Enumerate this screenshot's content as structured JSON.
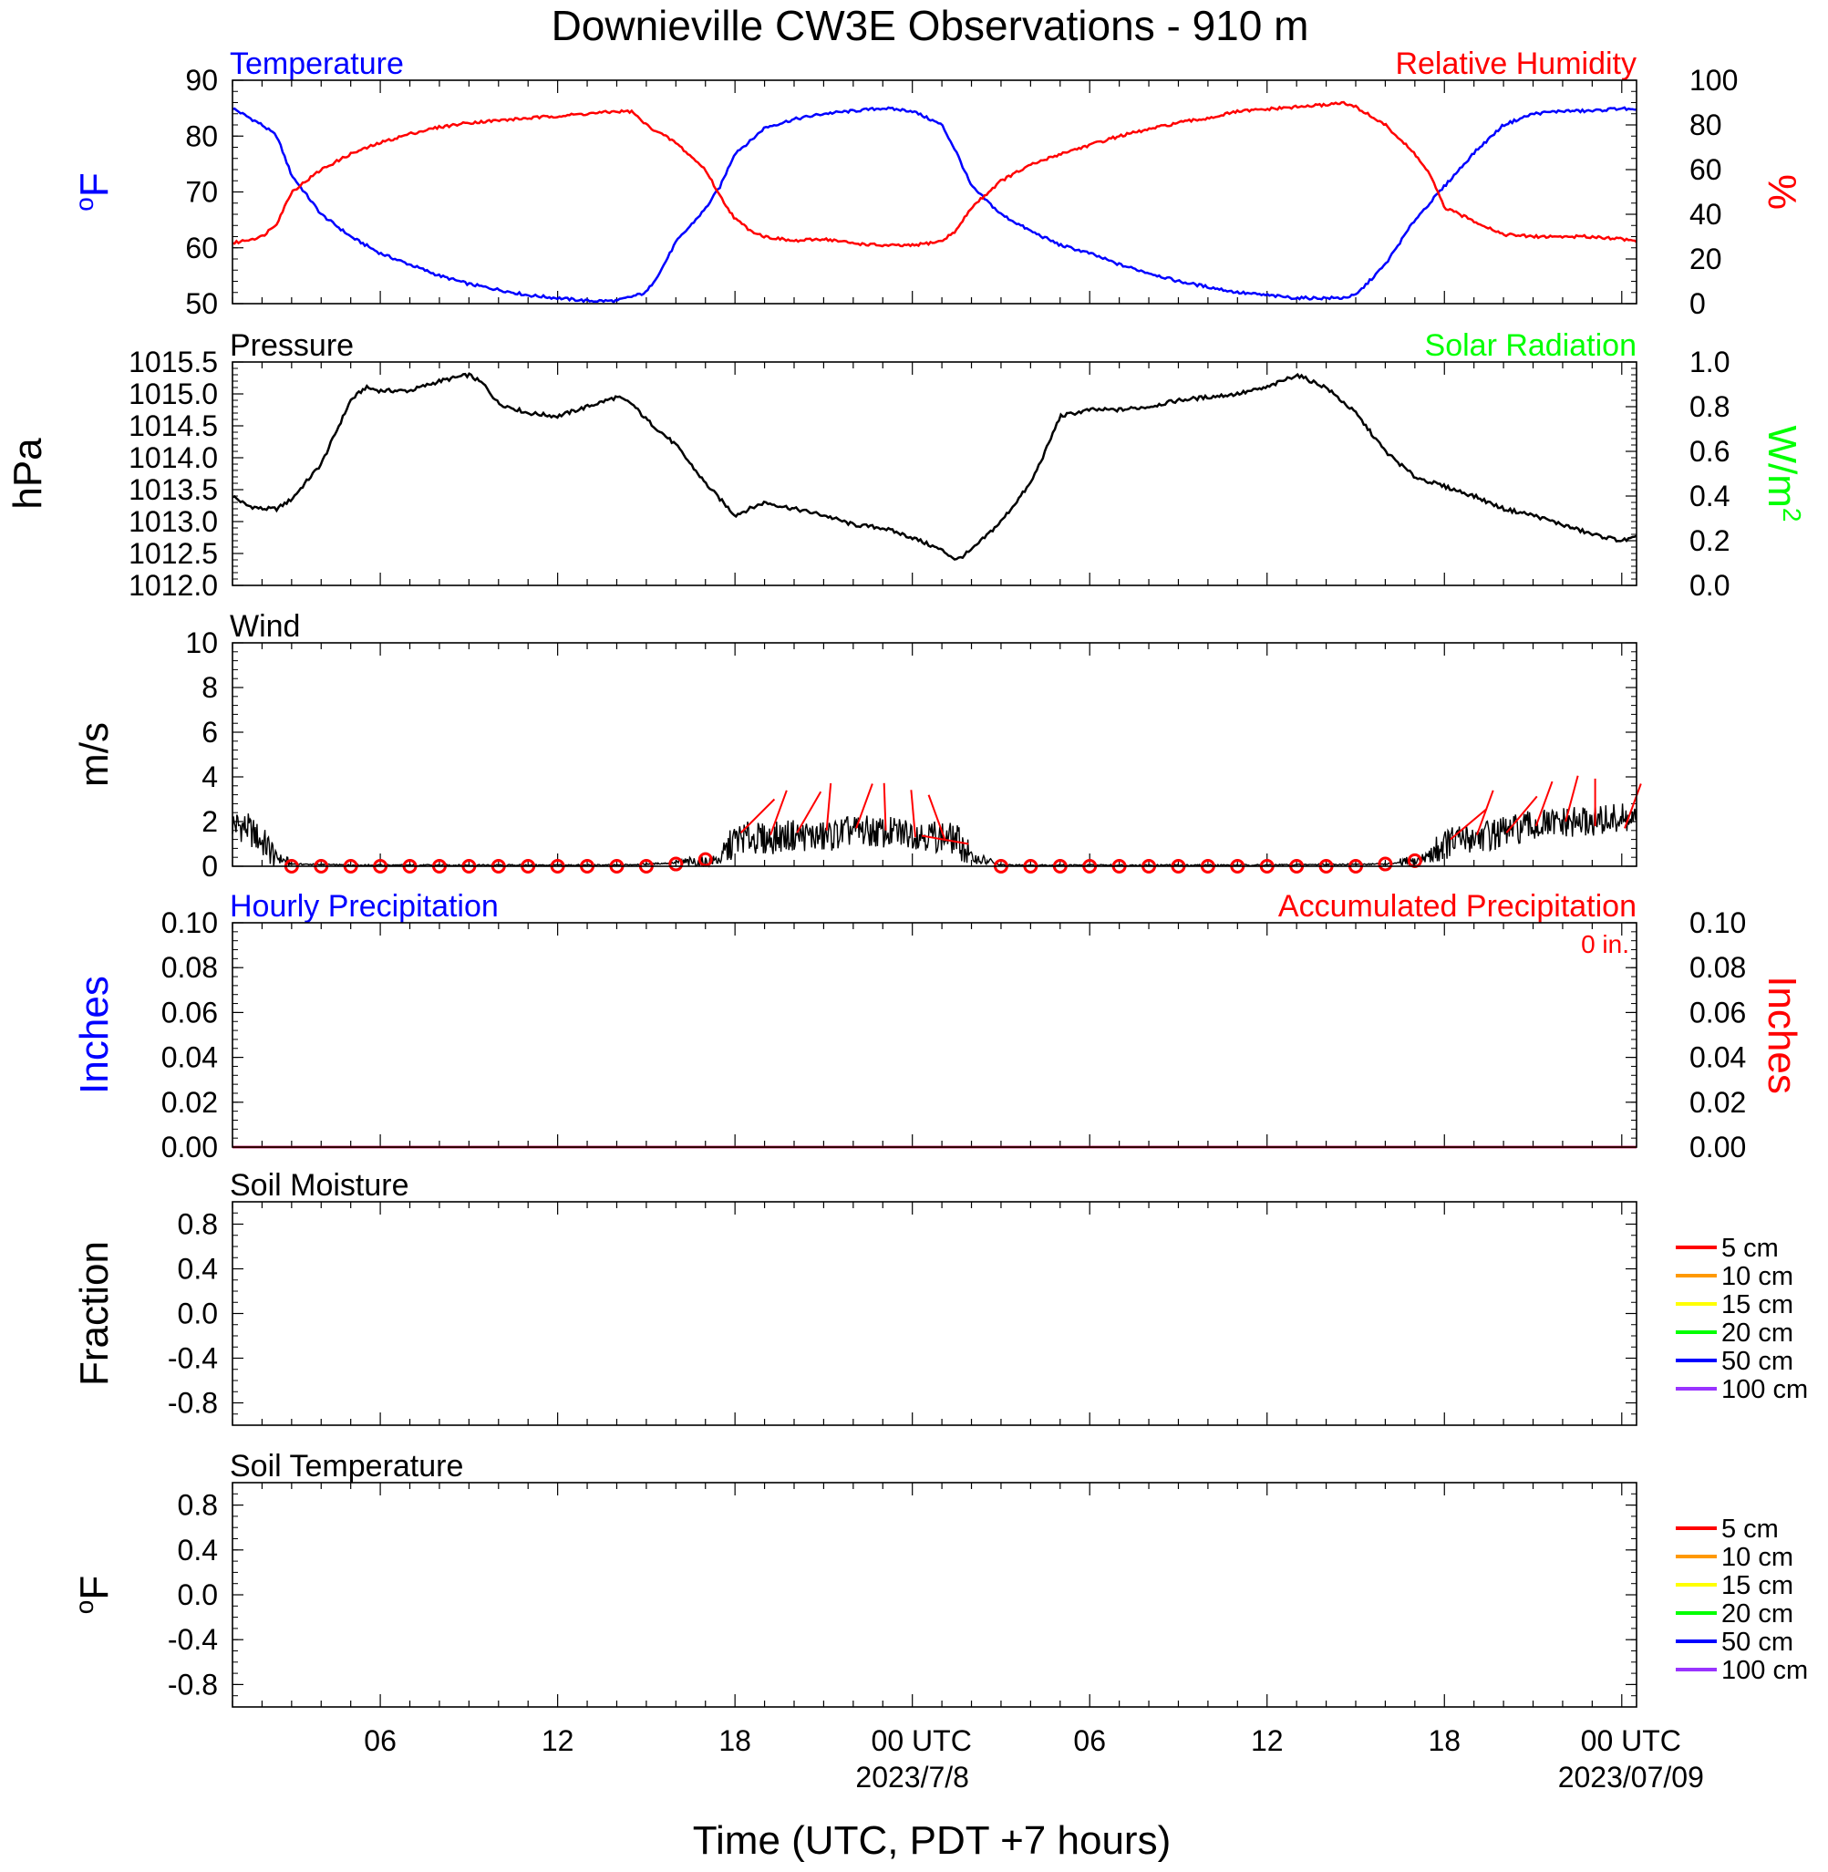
{
  "title": "Downieville CW3E Observations - 910 m",
  "xlabel": "Time (UTC, PDT +7 hours)",
  "xticks": [
    "06",
    "12",
    "18",
    "00 UTC",
    "06",
    "12",
    "18",
    "00 UTC"
  ],
  "xdates": [
    "2023/7/8",
    "2023/07/09"
  ],
  "colors": {
    "blue": "#0000ff",
    "red": "#ff0000",
    "green": "#00ff00",
    "black": "#000000"
  },
  "chart_data": [
    {
      "type": "line",
      "title_left": "Temperature",
      "title_right": "Relative Humidity",
      "ylabel_left_sup": "o",
      "ylabel_left": "F",
      "ylabel_right": "%",
      "ylim_left": [
        50,
        90
      ],
      "yticks_left": [
        "50",
        "60",
        "70",
        "80",
        "90"
      ],
      "ylim_right": [
        0,
        100
      ],
      "yticks_right": [
        "0",
        "20",
        "40",
        "60",
        "80",
        "100"
      ],
      "series": [
        {
          "name": "Temperature",
          "axis": "left",
          "x": [
            1,
            2,
            2.5,
            3,
            4,
            5,
            6,
            7,
            8,
            9,
            10,
            11,
            12,
            13,
            13.5,
            14,
            15,
            15.5,
            16,
            17,
            17.5,
            18,
            18.5,
            19,
            20,
            21,
            22,
            23,
            24,
            25,
            25.5,
            26,
            27,
            28,
            29,
            30,
            31,
            32,
            33,
            34,
            35,
            36,
            37,
            38,
            38.5,
            39,
            40,
            41,
            41.5,
            42,
            43,
            44,
            45,
            46,
            47,
            48,
            48.5
          ],
          "y": [
            85,
            82,
            80,
            73,
            66,
            62,
            59,
            57,
            55,
            53.5,
            52.5,
            51.5,
            51,
            50.5,
            50.5,
            50.5,
            52,
            56,
            61,
            67,
            71,
            77,
            79,
            81.5,
            83,
            84,
            84.5,
            85,
            84.5,
            82,
            77,
            71,
            66,
            63,
            60.5,
            59,
            57,
            55.5,
            54,
            53,
            52,
            51.5,
            51,
            51,
            51,
            51.5,
            57,
            65,
            68,
            71,
            77,
            82,
            84,
            84.5,
            84.5,
            85,
            84.5
          ]
        },
        {
          "name": "Relative Humidity",
          "axis": "right",
          "x": [
            1,
            2,
            2.5,
            3,
            4,
            5,
            6,
            7,
            8,
            9,
            10,
            11,
            12,
            13,
            14,
            14.5,
            15,
            16,
            17,
            17.5,
            18,
            18.5,
            19,
            20,
            21,
            22,
            23,
            24,
            25,
            25.5,
            26,
            27,
            28,
            29,
            30,
            31,
            32,
            33,
            34,
            35,
            36,
            37,
            38,
            38.5,
            39,
            40,
            41,
            41.5,
            42,
            43,
            44,
            45,
            46,
            47,
            48,
            48.5
          ],
          "y": [
            27,
            30,
            36,
            50,
            60,
            67,
            72,
            76,
            79,
            81,
            82,
            83,
            84,
            85,
            86,
            86,
            80,
            72,
            60,
            48,
            38,
            33,
            30,
            28,
            29,
            27,
            26,
            26,
            28,
            33,
            43,
            55,
            62,
            67,
            71,
            75,
            78,
            81,
            83,
            86,
            87,
            88,
            89,
            90,
            88,
            80,
            67,
            58,
            43,
            37,
            31,
            30,
            30,
            30,
            29,
            28
          ]
        }
      ]
    },
    {
      "type": "line",
      "title_left": "Pressure",
      "title_right": "Solar Radiation",
      "ylabel_left": "hPa",
      "ylabel_right": "W/m",
      "ylabel_right_sup": "2",
      "ylim_left": [
        1012.0,
        1015.5
      ],
      "yticks_left": [
        "1012.0",
        "1012.5",
        "1013.0",
        "1013.5",
        "1014.0",
        "1014.5",
        "1015.0",
        "1015.5"
      ],
      "ylim_right": [
        0,
        1
      ],
      "yticks_right": [
        "0.0",
        "0.2",
        "0.4",
        "0.6",
        "0.8",
        "1.0"
      ],
      "series": [
        {
          "name": "Pressure",
          "axis": "left",
          "x": [
            1,
            1.5,
            2,
            2.5,
            3,
            4,
            4.5,
            5,
            5.5,
            6,
            7,
            8,
            9,
            9.5,
            10,
            11,
            12,
            13,
            14,
            14.5,
            15,
            16,
            17,
            18,
            18.5,
            19,
            20,
            21,
            22,
            23,
            24,
            25,
            25.5,
            26,
            27,
            28,
            28.5,
            29,
            30,
            31,
            32,
            33,
            34,
            35,
            36,
            36.5,
            37,
            38,
            39,
            40,
            41,
            42,
            43,
            44,
            45,
            46,
            47,
            48,
            48.5
          ],
          "y": [
            1013.4,
            1013.25,
            1013.2,
            1013.2,
            1013.35,
            1013.9,
            1014.4,
            1014.9,
            1015.1,
            1015.05,
            1015.05,
            1015.2,
            1015.3,
            1015.15,
            1014.85,
            1014.7,
            1014.65,
            1014.8,
            1014.95,
            1014.85,
            1014.6,
            1014.2,
            1013.6,
            1013.1,
            1013.2,
            1013.3,
            1013.2,
            1013.1,
            1012.95,
            1012.9,
            1012.75,
            1012.55,
            1012.4,
            1012.55,
            1013.0,
            1013.6,
            1014.1,
            1014.65,
            1014.75,
            1014.75,
            1014.8,
            1014.9,
            1014.95,
            1015.0,
            1015.1,
            1015.2,
            1015.3,
            1015.1,
            1014.7,
            1014.1,
            1013.7,
            1013.55,
            1013.4,
            1013.2,
            1013.1,
            1012.95,
            1012.8,
            1012.7,
            1012.75
          ]
        }
      ]
    },
    {
      "type": "line",
      "title_left": "Wind",
      "ylabel_left": "m/s",
      "ylim_left": [
        0,
        10
      ],
      "yticks_left": [
        "0",
        "2",
        "4",
        "6",
        "8",
        "10"
      ],
      "series": [
        {
          "name": "Wind",
          "axis": "left",
          "x": [
            1,
            1.5,
            2,
            2.5,
            3,
            5,
            10,
            14,
            15,
            16,
            17,
            17.5,
            18,
            18.5,
            19,
            20,
            21,
            22,
            23,
            24,
            25,
            25.5,
            26,
            27,
            30,
            35,
            40,
            41,
            41.5,
            42,
            43,
            44,
            45,
            46,
            47,
            48,
            48.5
          ],
          "y": [
            1.9,
            1.7,
            1.1,
            0.4,
            0.1,
            0.05,
            0.05,
            0.05,
            0.1,
            0.15,
            0.2,
            0.3,
            1.2,
            1.3,
            1.2,
            1.4,
            1.3,
            1.6,
            1.5,
            1.5,
            1.3,
            1.2,
            0.4,
            0.05,
            0.05,
            0.05,
            0.1,
            0.2,
            0.5,
            1.0,
            1.3,
            1.5,
            1.8,
            1.9,
            2.0,
            2.1,
            2.0
          ]
        }
      ],
      "calm_markers_x": [
        3,
        4,
        5,
        6,
        7,
        8,
        9,
        10,
        11,
        12,
        13,
        14,
        15,
        16,
        17,
        27,
        28,
        29,
        30,
        31,
        32,
        33,
        34,
        35,
        36,
        37,
        38,
        39,
        40,
        41
      ],
      "calm_markers_y": [
        0,
        0,
        0,
        0,
        0,
        0,
        0,
        0,
        0,
        0,
        0,
        0,
        0,
        0.1,
        0.3,
        0,
        0,
        0,
        0,
        0,
        0,
        0,
        0,
        0,
        0,
        0,
        0,
        0,
        0.1,
        0.25
      ],
      "barbs": [
        {
          "x": 18.2,
          "speed": 1.5,
          "dir": 315
        },
        {
          "x": 19.2,
          "speed": 1.4,
          "dir": 340
        },
        {
          "x": 20.1,
          "speed": 1.5,
          "dir": 330
        },
        {
          "x": 21.1,
          "speed": 1.6,
          "dir": 355
        },
        {
          "x": 22.1,
          "speed": 1.7,
          "dir": 340
        },
        {
          "x": 23.1,
          "speed": 1.6,
          "dir": 2
        },
        {
          "x": 24.1,
          "speed": 1.3,
          "dir": 5
        },
        {
          "x": 25.1,
          "speed": 1.2,
          "dir": 20
        },
        {
          "x": 25.9,
          "speed": 1.0,
          "dir": 80
        },
        {
          "x": 42.2,
          "speed": 1.2,
          "dir": 310
        },
        {
          "x": 43.1,
          "speed": 1.4,
          "dir": 340
        },
        {
          "x": 44.1,
          "speed": 1.5,
          "dir": 320
        },
        {
          "x": 45.1,
          "speed": 1.8,
          "dir": 340
        },
        {
          "x": 46.1,
          "speed": 2.0,
          "dir": 345
        },
        {
          "x": 47.1,
          "speed": 1.8,
          "dir": 0
        },
        {
          "x": 48.1,
          "speed": 1.7,
          "dir": 340
        }
      ]
    },
    {
      "type": "line",
      "title_left": "Hourly Precipitation",
      "title_right": "Accumulated Precipitation",
      "annotation": "0 in.",
      "ylabel_left": "Inches",
      "ylabel_right": "Inches",
      "ylim_left": [
        0,
        0.1
      ],
      "yticks_left": [
        "0.00",
        "0.02",
        "0.04",
        "0.06",
        "0.08",
        "0.10"
      ],
      "ylim_right": [
        0,
        0.1
      ],
      "yticks_right": [
        "0.00",
        "0.02",
        "0.04",
        "0.06",
        "0.08",
        "0.10"
      ],
      "series": [
        {
          "name": "Hourly Precipitation",
          "axis": "left",
          "x": [
            1,
            48.5
          ],
          "y": [
            0,
            0
          ]
        },
        {
          "name": "Accumulated Precipitation",
          "axis": "right",
          "x": [
            1,
            48.5
          ],
          "y": [
            0,
            0
          ]
        }
      ]
    },
    {
      "type": "line",
      "title_left": "Soil Moisture",
      "ylabel_left": "Fraction",
      "ylim_left": [
        -1,
        1
      ],
      "yticks_left": [
        "-0.8",
        "-0.4",
        "0.0",
        "0.4",
        "0.8"
      ],
      "legend": [
        "5 cm",
        "10 cm",
        "15 cm",
        "20 cm",
        "50 cm",
        "100 cm"
      ],
      "series": []
    },
    {
      "type": "line",
      "title_left": "Soil Temperature",
      "ylabel_left_sup": "o",
      "ylabel_left": "F",
      "ylim_left": [
        -1,
        1
      ],
      "yticks_left": [
        "-0.8",
        "-0.4",
        "0.0",
        "0.4",
        "0.8"
      ],
      "legend": [
        "5 cm",
        "10 cm",
        "15 cm",
        "20 cm",
        "50 cm",
        "100 cm"
      ],
      "series": []
    }
  ],
  "legend_colors": [
    "#ff0000",
    "#ff9900",
    "#ffff00",
    "#00ff00",
    "#0000ff",
    "#9933ff"
  ]
}
